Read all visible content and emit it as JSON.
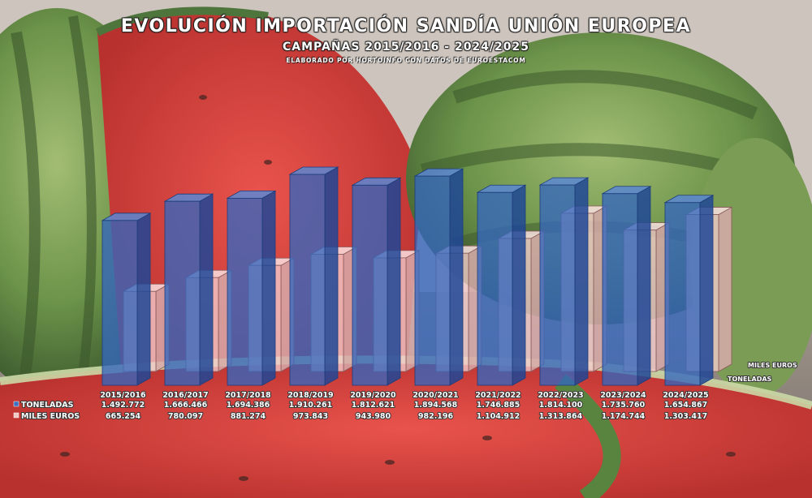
{
  "header": {
    "title": "EVOLUCIÓN IMPORTACIÓN SANDÍA UNIÓN EUROPEA",
    "subtitle": "CAMPAÑAS 2015/2016 - 2024/2025",
    "source": "ELABORADO POR HORTOINFO CON DATOS DE EUROESTACOM"
  },
  "chart_data": {
    "type": "bar",
    "categories": [
      "2015/2016",
      "2016/2017",
      "2017/2018",
      "2018/2019",
      "2019/2020",
      "2020/2021",
      "2021/2022",
      "2022/2023",
      "2023/2024",
      "2024/2025"
    ],
    "series": [
      {
        "name": "TONELADAS",
        "values": [
          1492772,
          1666466,
          1694386,
          1910261,
          1812621,
          1894568,
          1746885,
          1814100,
          1735760,
          1654867
        ],
        "labels": [
          "1.492.772",
          "1.666.466",
          "1.694.386",
          "1.910.261",
          "1.812.621",
          "1.894.568",
          "1.746.885",
          "1.814.100",
          "1.735.760",
          "1.654.867"
        ],
        "color": "#3b6fc4"
      },
      {
        "name": "MILES EUROS",
        "values": [
          665254,
          780097,
          881274,
          973843,
          943980,
          982196,
          1104912,
          1313864,
          1174744,
          1303417
        ],
        "labels": [
          "665.254",
          "780.097",
          "881.274",
          "973.843",
          "943.980",
          "982.196",
          "1.104.912",
          "1.313.864",
          "1.174.744",
          "1.303.417"
        ],
        "color": "#f0c8c8"
      }
    ],
    "axis_labels": {
      "back_row": "MILES EUROS",
      "front_row": "TONELADAS"
    },
    "legend": "data-table-below",
    "grid": false
  }
}
